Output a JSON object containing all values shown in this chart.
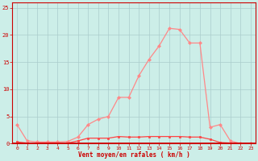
{
  "x": [
    0,
    1,
    2,
    3,
    4,
    5,
    6,
    7,
    8,
    9,
    10,
    11,
    12,
    13,
    14,
    15,
    16,
    17,
    18,
    19,
    20,
    21,
    22,
    23
  ],
  "rafales": [
    3.5,
    0.5,
    0.3,
    0.3,
    0.3,
    0.4,
    1.2,
    3.5,
    4.5,
    5.0,
    8.5,
    8.5,
    12.5,
    15.5,
    18.0,
    21.2,
    21.0,
    18.5,
    18.5,
    3.0,
    3.5,
    0.5,
    0.0,
    0.0
  ],
  "moyen": [
    0.3,
    0.1,
    0.1,
    0.1,
    0.1,
    0.1,
    0.5,
    1.0,
    1.0,
    1.0,
    1.3,
    1.2,
    1.2,
    1.3,
    1.3,
    1.3,
    1.3,
    1.2,
    1.2,
    0.8,
    0.2,
    0.1,
    0.0,
    0.0
  ],
  "line_rafales_color": "#FF8888",
  "line_moyen_color": "#FF4444",
  "bg_color": "#CCEEE8",
  "grid_color": "#AACCCC",
  "xlabel": "Vent moyen/en rafales ( km/h )",
  "ylim": [
    0,
    26
  ],
  "xlim": [
    -0.5,
    23.5
  ],
  "yticks": [
    0,
    5,
    10,
    15,
    20,
    25
  ],
  "xticks": [
    0,
    1,
    2,
    3,
    4,
    5,
    6,
    7,
    8,
    9,
    10,
    11,
    12,
    13,
    14,
    15,
    16,
    17,
    18,
    19,
    20,
    21,
    22,
    23
  ]
}
